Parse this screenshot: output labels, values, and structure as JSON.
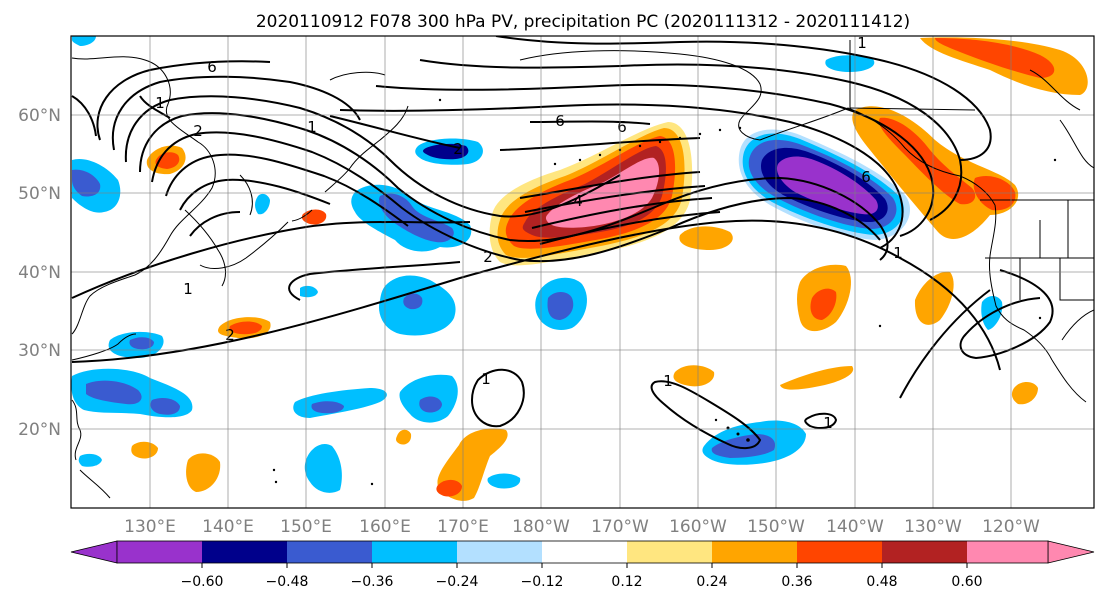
{
  "title": "2020110912 F078 300 hPa PV, precipitation PC (2020111312 - 2020111412)",
  "map": {
    "lon_range": [
      "120°E",
      "110°W"
    ],
    "lat_range": [
      "10°N",
      "70°N"
    ],
    "lon_ticks": [
      "130°E",
      "140°E",
      "150°E",
      "160°E",
      "170°E",
      "180°W",
      "170°W",
      "160°W",
      "150°W",
      "140°W",
      "130°W",
      "120°W"
    ],
    "lat_ticks": [
      "60°N",
      "50°N",
      "40°N",
      "30°N",
      "20°N"
    ],
    "gridlines": true,
    "fields": [
      {
        "name": "300 hPa PV",
        "style": "black contours",
        "labels": [
          "1",
          "2",
          "4",
          "6"
        ]
      },
      {
        "name": "precipitation PC",
        "style": "filled color shading"
      }
    ]
  },
  "colorbar": {
    "orientation": "horizontal",
    "extend": "both",
    "colors": [
      "#9932CC",
      "#00008B",
      "#3A5BD0",
      "#00BFFF",
      "#B3E0FF",
      "#FFFFFF",
      "#FFE680",
      "#FFA500",
      "#FF4500",
      "#B22222",
      "#FF88B0"
    ],
    "tick_labels": [
      "−0.60",
      "−0.48",
      "−0.36",
      "−0.24",
      "−0.12",
      "0.12",
      "0.24",
      "0.36",
      "0.48",
      "0.60"
    ]
  }
}
